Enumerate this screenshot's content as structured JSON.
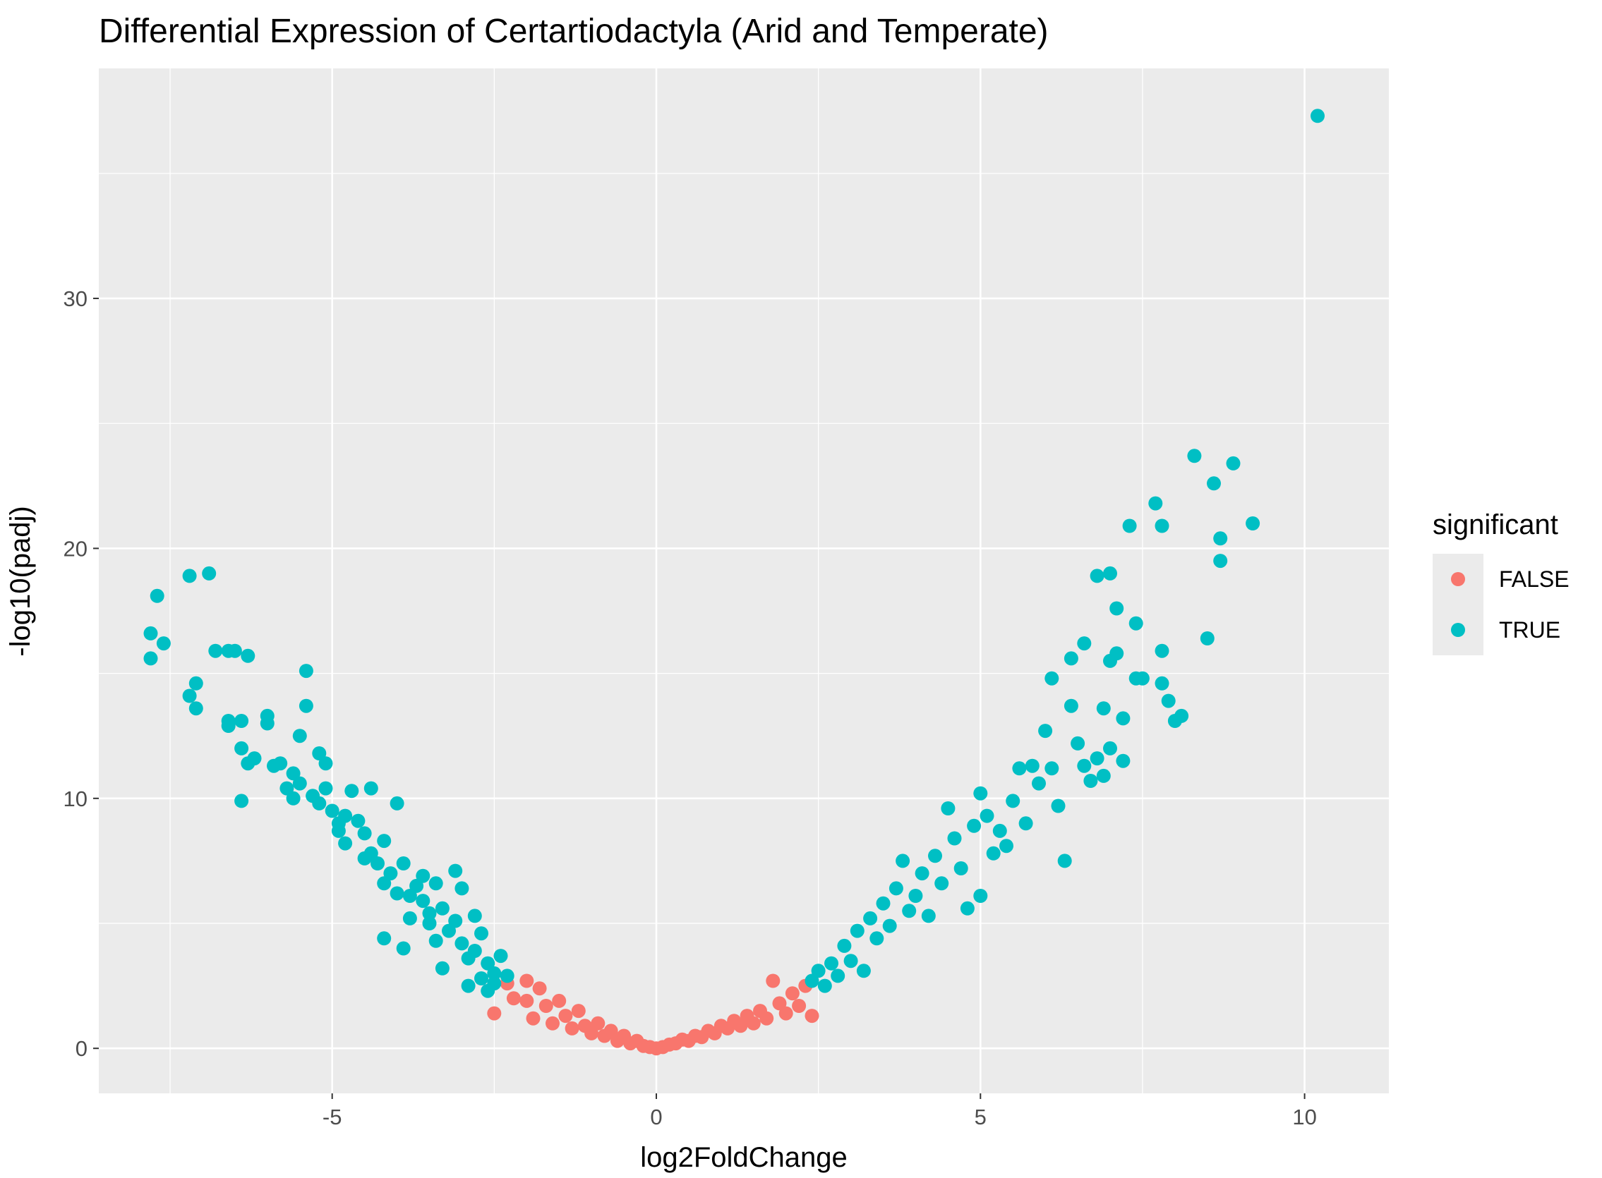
{
  "chart_data": {
    "type": "scatter",
    "title": "Differential Expression of Certartiodactyla (Arid and Temperate)",
    "xlabel": "log2FoldChange",
    "ylabel": "-log10(padj)",
    "xlim": [
      -8.6,
      11.3
    ],
    "ylim": [
      -1.8,
      39.2
    ],
    "x_ticks": [
      -5,
      0,
      5,
      10
    ],
    "x_tick_labels": [
      "-5",
      "0",
      "5",
      "10"
    ],
    "y_ticks": [
      0,
      10,
      20,
      30
    ],
    "y_tick_labels": [
      "0",
      "10",
      "20",
      "30"
    ],
    "grid": true,
    "legend": {
      "title": "significant",
      "position": "right",
      "entries": [
        {
          "label": "FALSE",
          "color": "#F8766D"
        },
        {
          "label": "TRUE",
          "color": "#00BFC4"
        }
      ]
    },
    "series": [
      {
        "name": "FALSE",
        "color": "#F8766D",
        "points": [
          [
            -2.3,
            2.6
          ],
          [
            -2.5,
            1.4
          ],
          [
            -2.2,
            2.0
          ],
          [
            -2.0,
            2.7
          ],
          [
            -2.0,
            1.9
          ],
          [
            -1.9,
            1.2
          ],
          [
            -1.8,
            2.4
          ],
          [
            -1.7,
            1.7
          ],
          [
            -1.6,
            1.0
          ],
          [
            -1.5,
            1.9
          ],
          [
            -1.4,
            1.3
          ],
          [
            -1.3,
            0.8
          ],
          [
            -1.2,
            1.5
          ],
          [
            -1.1,
            0.9
          ],
          [
            -1.0,
            0.6
          ],
          [
            -0.9,
            1.0
          ],
          [
            -0.8,
            0.5
          ],
          [
            -0.7,
            0.7
          ],
          [
            -0.6,
            0.3
          ],
          [
            -0.5,
            0.5
          ],
          [
            -0.4,
            0.2
          ],
          [
            -0.3,
            0.3
          ],
          [
            -0.2,
            0.1
          ],
          [
            -0.1,
            0.05
          ],
          [
            0.0,
            0.0
          ],
          [
            0.1,
            0.05
          ],
          [
            0.2,
            0.15
          ],
          [
            0.3,
            0.2
          ],
          [
            0.4,
            0.35
          ],
          [
            0.5,
            0.3
          ],
          [
            0.6,
            0.5
          ],
          [
            0.7,
            0.45
          ],
          [
            0.8,
            0.7
          ],
          [
            0.9,
            0.6
          ],
          [
            1.0,
            0.9
          ],
          [
            1.1,
            0.8
          ],
          [
            1.2,
            1.1
          ],
          [
            1.3,
            0.9
          ],
          [
            1.4,
            1.3
          ],
          [
            1.5,
            1.0
          ],
          [
            1.6,
            1.5
          ],
          [
            1.7,
            1.2
          ],
          [
            1.8,
            2.7
          ],
          [
            1.9,
            1.8
          ],
          [
            2.0,
            1.4
          ],
          [
            2.1,
            2.2
          ],
          [
            2.2,
            1.7
          ],
          [
            2.3,
            2.5
          ],
          [
            2.4,
            1.3
          ]
        ]
      },
      {
        "name": "TRUE",
        "color": "#00BFC4",
        "points": [
          [
            -7.8,
            16.6
          ],
          [
            -7.8,
            15.6
          ],
          [
            -7.7,
            18.1
          ],
          [
            -7.6,
            16.2
          ],
          [
            -7.2,
            18.9
          ],
          [
            -6.9,
            19.0
          ],
          [
            -7.1,
            14.6
          ],
          [
            -7.2,
            14.1
          ],
          [
            -7.1,
            13.6
          ],
          [
            -6.8,
            15.9
          ],
          [
            -6.6,
            15.9
          ],
          [
            -6.5,
            15.9
          ],
          [
            -6.3,
            15.7
          ],
          [
            -6.6,
            13.1
          ],
          [
            -6.6,
            12.9
          ],
          [
            -6.4,
            13.1
          ],
          [
            -6.4,
            12.0
          ],
          [
            -6.3,
            11.4
          ],
          [
            -6.4,
            9.9
          ],
          [
            -6.2,
            11.6
          ],
          [
            -6.0,
            13.3
          ],
          [
            -6.0,
            13.0
          ],
          [
            -5.8,
            11.4
          ],
          [
            -5.6,
            11.0
          ],
          [
            -5.7,
            10.4
          ],
          [
            -5.5,
            10.6
          ],
          [
            -5.4,
            15.1
          ],
          [
            -5.4,
            13.7
          ],
          [
            -5.2,
            11.8
          ],
          [
            -5.1,
            11.4
          ],
          [
            -5.5,
            12.5
          ],
          [
            -5.3,
            10.1
          ],
          [
            -5.1,
            10.4
          ],
          [
            -5.0,
            9.5
          ],
          [
            -4.9,
            9.0
          ],
          [
            -4.8,
            8.2
          ],
          [
            -4.7,
            10.3
          ],
          [
            -4.4,
            10.4
          ],
          [
            -4.6,
            9.1
          ],
          [
            -4.5,
            8.6
          ],
          [
            -4.4,
            7.8
          ],
          [
            -4.2,
            8.3
          ],
          [
            -4.0,
            9.8
          ],
          [
            -4.3,
            7.4
          ],
          [
            -4.2,
            6.6
          ],
          [
            -4.1,
            7.0
          ],
          [
            -3.9,
            7.4
          ],
          [
            -4.0,
            6.2
          ],
          [
            -4.2,
            4.4
          ],
          [
            -3.9,
            4.0
          ],
          [
            -3.8,
            5.2
          ],
          [
            -3.7,
            6.5
          ],
          [
            -3.6,
            5.9
          ],
          [
            -3.5,
            5.0
          ],
          [
            -3.4,
            4.3
          ],
          [
            -3.3,
            5.6
          ],
          [
            -3.4,
            6.6
          ],
          [
            -3.1,
            7.1
          ],
          [
            -3.0,
            6.4
          ],
          [
            -3.1,
            5.1
          ],
          [
            -3.0,
            4.2
          ],
          [
            -2.9,
            3.6
          ],
          [
            -2.8,
            5.3
          ],
          [
            -2.7,
            4.6
          ],
          [
            -2.6,
            3.4
          ],
          [
            -2.7,
            2.8
          ],
          [
            -2.5,
            3.0
          ],
          [
            -2.4,
            3.7
          ],
          [
            -2.3,
            2.9
          ],
          [
            -2.9,
            2.5
          ],
          [
            -3.3,
            3.2
          ],
          [
            -2.6,
            2.3
          ],
          [
            -3.6,
            6.9
          ],
          [
            -3.8,
            6.1
          ],
          [
            -4.5,
            7.6
          ],
          [
            -4.8,
            9.3
          ],
          [
            -5.2,
            9.8
          ],
          [
            -5.9,
            11.3
          ],
          [
            -5.6,
            10.0
          ],
          [
            -4.9,
            8.7
          ],
          [
            -3.5,
            5.4
          ],
          [
            -3.2,
            4.7
          ],
          [
            -2.8,
            3.9
          ],
          [
            -2.5,
            2.6
          ],
          [
            2.4,
            2.7
          ],
          [
            2.5,
            3.1
          ],
          [
            2.6,
            2.5
          ],
          [
            2.7,
            3.4
          ],
          [
            2.8,
            2.9
          ],
          [
            2.9,
            4.1
          ],
          [
            3.0,
            3.5
          ],
          [
            3.1,
            4.7
          ],
          [
            3.2,
            3.1
          ],
          [
            3.3,
            5.2
          ],
          [
            3.4,
            4.4
          ],
          [
            3.5,
            5.8
          ],
          [
            3.6,
            4.9
          ],
          [
            3.7,
            6.4
          ],
          [
            3.8,
            7.5
          ],
          [
            3.9,
            5.5
          ],
          [
            4.0,
            6.1
          ],
          [
            4.1,
            7.0
          ],
          [
            4.2,
            5.3
          ],
          [
            4.3,
            7.7
          ],
          [
            4.4,
            6.6
          ],
          [
            4.5,
            9.6
          ],
          [
            4.6,
            8.4
          ],
          [
            4.7,
            7.2
          ],
          [
            4.8,
            5.6
          ],
          [
            4.9,
            8.9
          ],
          [
            5.0,
            10.2
          ],
          [
            5.1,
            9.3
          ],
          [
            5.0,
            6.1
          ],
          [
            5.2,
            7.8
          ],
          [
            5.3,
            8.7
          ],
          [
            5.4,
            8.1
          ],
          [
            5.5,
            9.9
          ],
          [
            5.6,
            11.2
          ],
          [
            5.7,
            9.0
          ],
          [
            5.8,
            11.3
          ],
          [
            5.9,
            10.6
          ],
          [
            6.0,
            12.7
          ],
          [
            6.1,
            11.2
          ],
          [
            6.2,
            9.7
          ],
          [
            6.3,
            7.5
          ],
          [
            6.4,
            13.7
          ],
          [
            6.5,
            12.2
          ],
          [
            6.6,
            11.3
          ],
          [
            6.4,
            15.6
          ],
          [
            6.1,
            14.8
          ],
          [
            6.6,
            16.2
          ],
          [
            6.8,
            18.9
          ],
          [
            6.9,
            13.6
          ],
          [
            7.0,
            19.0
          ],
          [
            7.0,
            15.5
          ],
          [
            7.1,
            15.8
          ],
          [
            7.1,
            17.6
          ],
          [
            7.2,
            13.2
          ],
          [
            7.2,
            11.5
          ],
          [
            7.3,
            20.9
          ],
          [
            7.4,
            17.0
          ],
          [
            7.4,
            14.8
          ],
          [
            7.5,
            14.8
          ],
          [
            7.7,
            21.8
          ],
          [
            7.8,
            20.9
          ],
          [
            7.8,
            15.9
          ],
          [
            7.8,
            14.6
          ],
          [
            7.9,
            13.9
          ],
          [
            8.0,
            13.1
          ],
          [
            8.1,
            13.3
          ],
          [
            8.3,
            23.7
          ],
          [
            8.5,
            16.4
          ],
          [
            8.6,
            22.6
          ],
          [
            8.7,
            20.4
          ],
          [
            8.7,
            19.5
          ],
          [
            8.9,
            23.4
          ],
          [
            9.2,
            21.0
          ],
          [
            10.2,
            37.3
          ],
          [
            6.8,
            11.6
          ],
          [
            6.9,
            10.9
          ],
          [
            7.0,
            12.0
          ],
          [
            6.7,
            10.7
          ]
        ]
      }
    ]
  }
}
